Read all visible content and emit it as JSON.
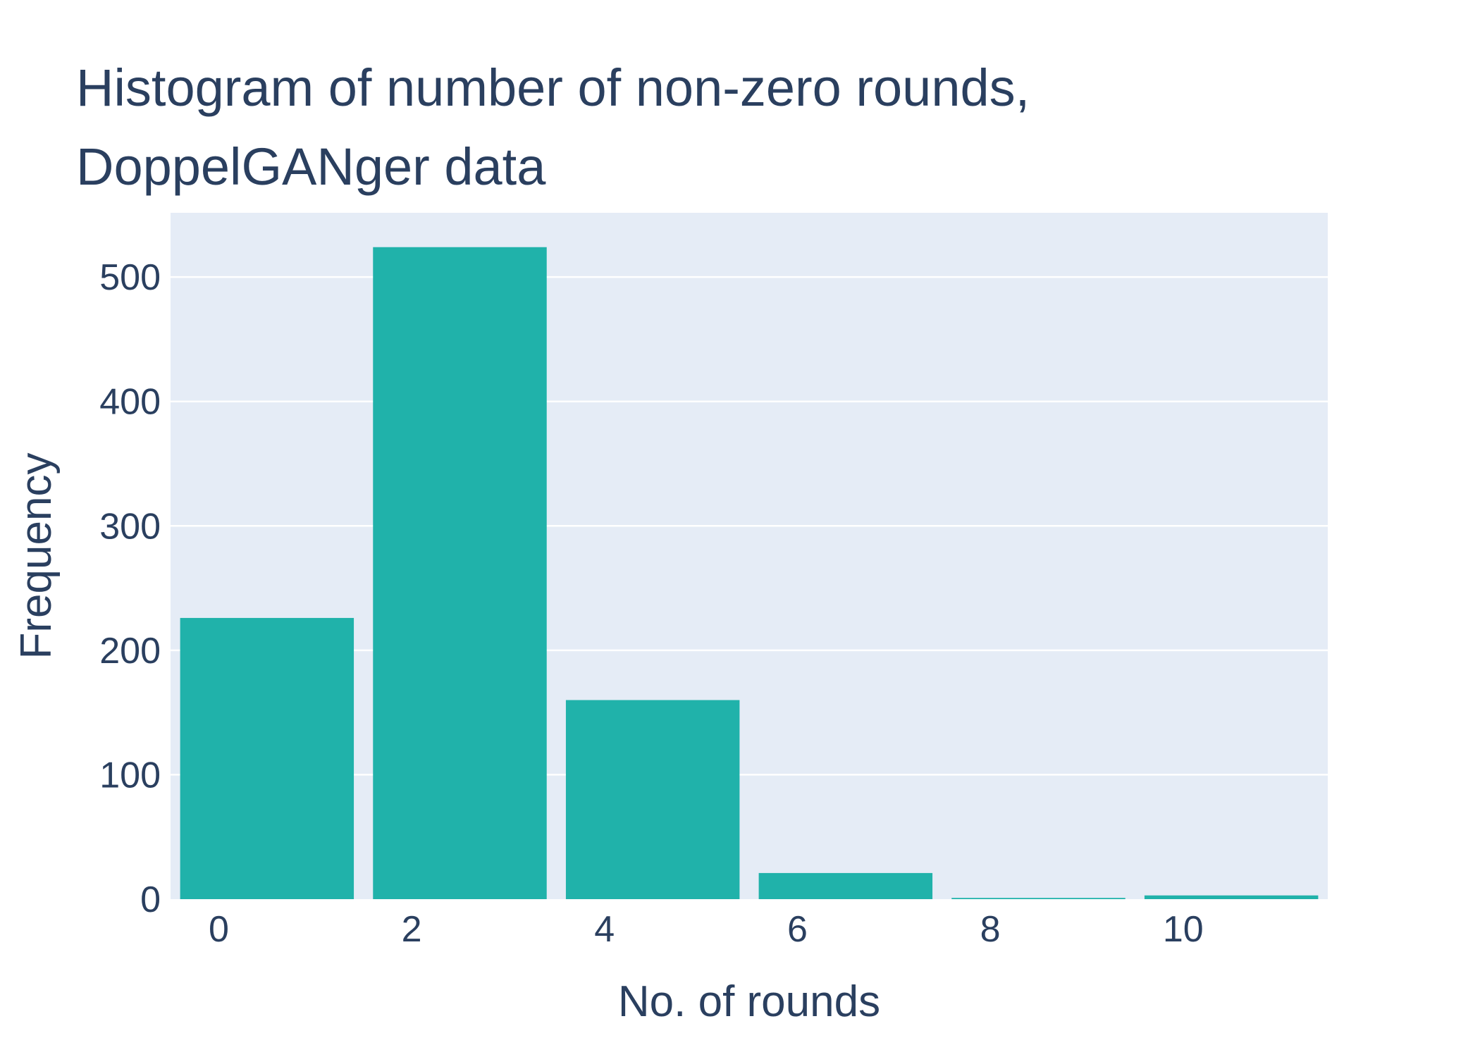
{
  "chart_data": {
    "type": "bar",
    "title_lines": [
      "Histogram of number of non-zero rounds,",
      "DoppelGANger data"
    ],
    "xlabel": "No. of rounds",
    "ylabel": "Frequency",
    "bins": [
      {
        "start": -0.5,
        "end": 1.5,
        "value": 226
      },
      {
        "start": 1.5,
        "end": 3.5,
        "value": 524
      },
      {
        "start": 3.5,
        "end": 5.5,
        "value": 160
      },
      {
        "start": 5.5,
        "end": 7.5,
        "value": 21
      },
      {
        "start": 7.5,
        "end": 9.5,
        "value": 1
      },
      {
        "start": 9.5,
        "end": 11.5,
        "value": 3
      }
    ],
    "xlim": [
      -0.5,
      11.5
    ],
    "ylim": [
      0,
      551.6
    ],
    "x_ticks": [
      "0",
      "2",
      "4",
      "6",
      "8",
      "10"
    ],
    "y_ticks": [
      "0",
      "100",
      "200",
      "300",
      "400",
      "500"
    ],
    "grid": true,
    "colors": {
      "bar": "#20b2aa",
      "plot_bg": "#e5ecf6",
      "grid": "#ffffff",
      "text": "#2a3f5f"
    }
  }
}
